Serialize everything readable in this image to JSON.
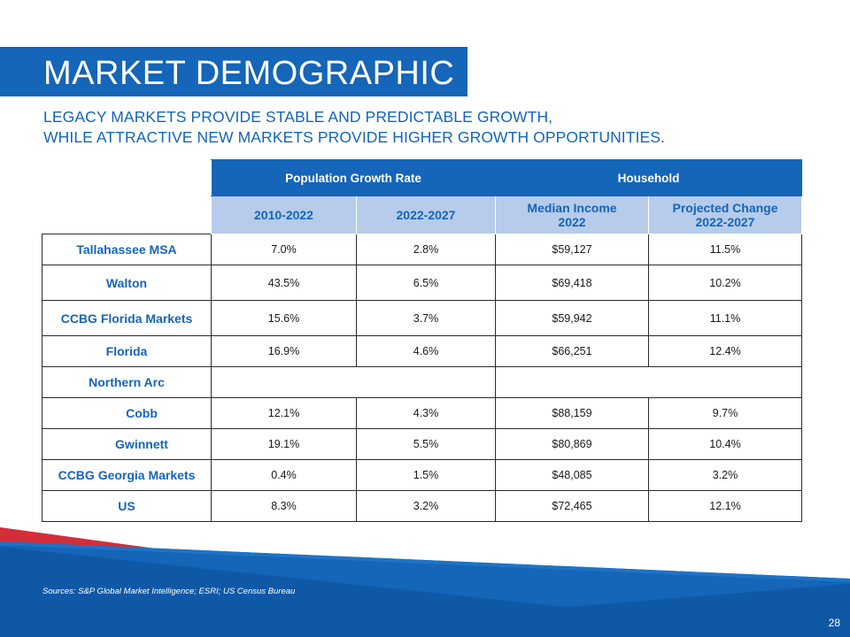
{
  "title": "MARKET DEMOGRAPHIC",
  "subtitle": [
    "LEGACY MARKETS PROVIDE STABLE AND PREDICTABLE GROWTH,",
    "WHILE ATTRACTIVE NEW MARKETS PROVIDE HIGHER GROWTH OPPORTUNITIES."
  ],
  "table": {
    "group_headers": [
      "Population Growth Rate",
      "Household"
    ],
    "sub_headers": [
      "2010-2022",
      "2022-2027",
      "Median Income\n2022",
      "Projected Change\n2022-2027"
    ],
    "rows": [
      {
        "label": "Tallahassee MSA",
        "values": [
          "7.0%",
          "2.8%",
          "$59,127",
          "11.5%"
        ]
      },
      {
        "label": "Walton",
        "values": [
          "43.5%",
          "6.5%",
          "$69,418",
          "10.2%"
        ]
      },
      {
        "label": "CCBG Florida Markets",
        "values": [
          "15.6%",
          "3.7%",
          "$59,942",
          "11.1%"
        ]
      },
      {
        "label": "Florida",
        "values": [
          "16.9%",
          "4.6%",
          "$66,251",
          "12.4%"
        ]
      },
      {
        "label": "Northern Arc",
        "values": [
          "",
          "",
          "",
          ""
        ]
      },
      {
        "label": "Cobb",
        "values": [
          "12.1%",
          "4.3%",
          "$88,159",
          "9.7%"
        ]
      },
      {
        "label": "Gwinnett",
        "values": [
          "19.1%",
          "5.5%",
          "$80,869",
          "10.4%"
        ]
      },
      {
        "label": "CCBG Georgia Markets",
        "values": [
          "0.4%",
          "1.5%",
          "$48,085",
          "3.2%"
        ]
      },
      {
        "label": "US",
        "values": [
          "8.3%",
          "3.2%",
          "$72,465",
          "12.1%"
        ]
      }
    ]
  },
  "sources": "Sources: S&P Global Market Intelligence; ESRI; US Census Bureau",
  "page_number": "28",
  "colors": {
    "primary_blue": "#1565b8",
    "light_blue": "#b6ccea",
    "accent_red": "#d42d3a"
  }
}
